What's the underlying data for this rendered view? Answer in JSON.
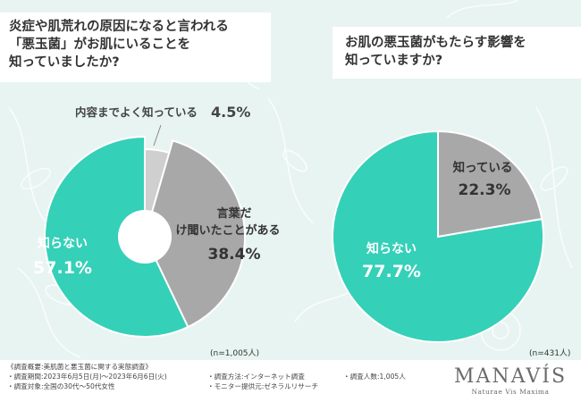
{
  "colors": {
    "teal": "#35d0b8",
    "gray": "#a8a8a8",
    "light_gray": "#cfcfcf",
    "background": "#e8f4f1"
  },
  "left_panel": {
    "title_lines": [
      "炎症や肌荒れの原因になると言われる",
      "「悪玉菌」がお肌にいることを",
      "知っていましたか?"
    ],
    "n_label": "(n=1,005人)"
  },
  "right_panel": {
    "title_lines": [
      "お肌の悪玉菌がもたらす影響を",
      "知っていますか?"
    ],
    "n_label": "(n=431人)"
  },
  "chart_data": [
    {
      "type": "pie",
      "title": "炎症や肌荒れの原因になると言われる「悪玉菌」がお肌にいることを知っていましたか?",
      "donut": true,
      "slices": [
        {
          "label": "内容までよく知っている",
          "value": 4.5,
          "display": "4.5%",
          "color": "#cfcfcf"
        },
        {
          "label": "言葉だけ聞いたことがある",
          "value": 38.4,
          "display": "38.4%",
          "color": "#a8a8a8"
        },
        {
          "label": "知らない",
          "value": 57.1,
          "display": "57.1%",
          "color": "#35d0b8"
        }
      ]
    },
    {
      "type": "pie",
      "title": "お肌の悪玉菌がもたらす影響を知っていますか?",
      "donut": false,
      "slices": [
        {
          "label": "知っている",
          "value": 22.3,
          "display": "22.3%",
          "color": "#a8a8a8"
        },
        {
          "label": "知らない",
          "value": 77.7,
          "display": "77.7%",
          "color": "#35d0b8"
        }
      ]
    }
  ],
  "footer": {
    "notes": [
      "《調査概要:美肌菌と悪玉菌に関する実態調査》",
      "・調査期間:2023年6月5日(月)〜2023年6月6日(火)",
      "・調査方法:インターネット調査",
      "・調査人数:1,005人",
      "・調査対象:全国の30代〜50代女性",
      "・モニター提供元:ゼネラルリサーチ"
    ],
    "brand": "MANAVÍS",
    "brand_tagline": "Naturae Vis Maxima"
  }
}
